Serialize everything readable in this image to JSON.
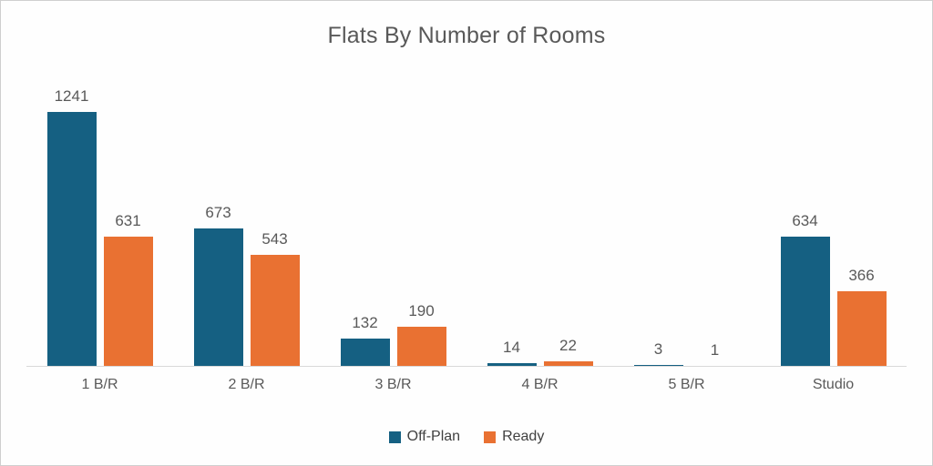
{
  "title": "Flats By Number of Rooms",
  "colors": {
    "off_plan": "#156082",
    "ready": "#e97132",
    "axis_line": "#d9d9d9",
    "text": "#595959",
    "background": "#fefefe",
    "border": "#cfcfcf"
  },
  "chart_data": {
    "type": "bar",
    "title": "Flats By Number of Rooms",
    "categories": [
      "1 B/R",
      "2 B/R",
      "3 B/R",
      "4 B/R",
      "5 B/R",
      "Studio"
    ],
    "series": [
      {
        "name": "Off-Plan",
        "color": "#156082",
        "values": [
          1241,
          673,
          132,
          14,
          3,
          634
        ]
      },
      {
        "name": "Ready",
        "color": "#e97132",
        "values": [
          631,
          543,
          190,
          22,
          1,
          366
        ]
      }
    ],
    "xlabel": "",
    "ylabel": "",
    "ylim": [
      0,
      1300
    ],
    "grid": false,
    "data_labels": true,
    "legend_position": "bottom"
  }
}
